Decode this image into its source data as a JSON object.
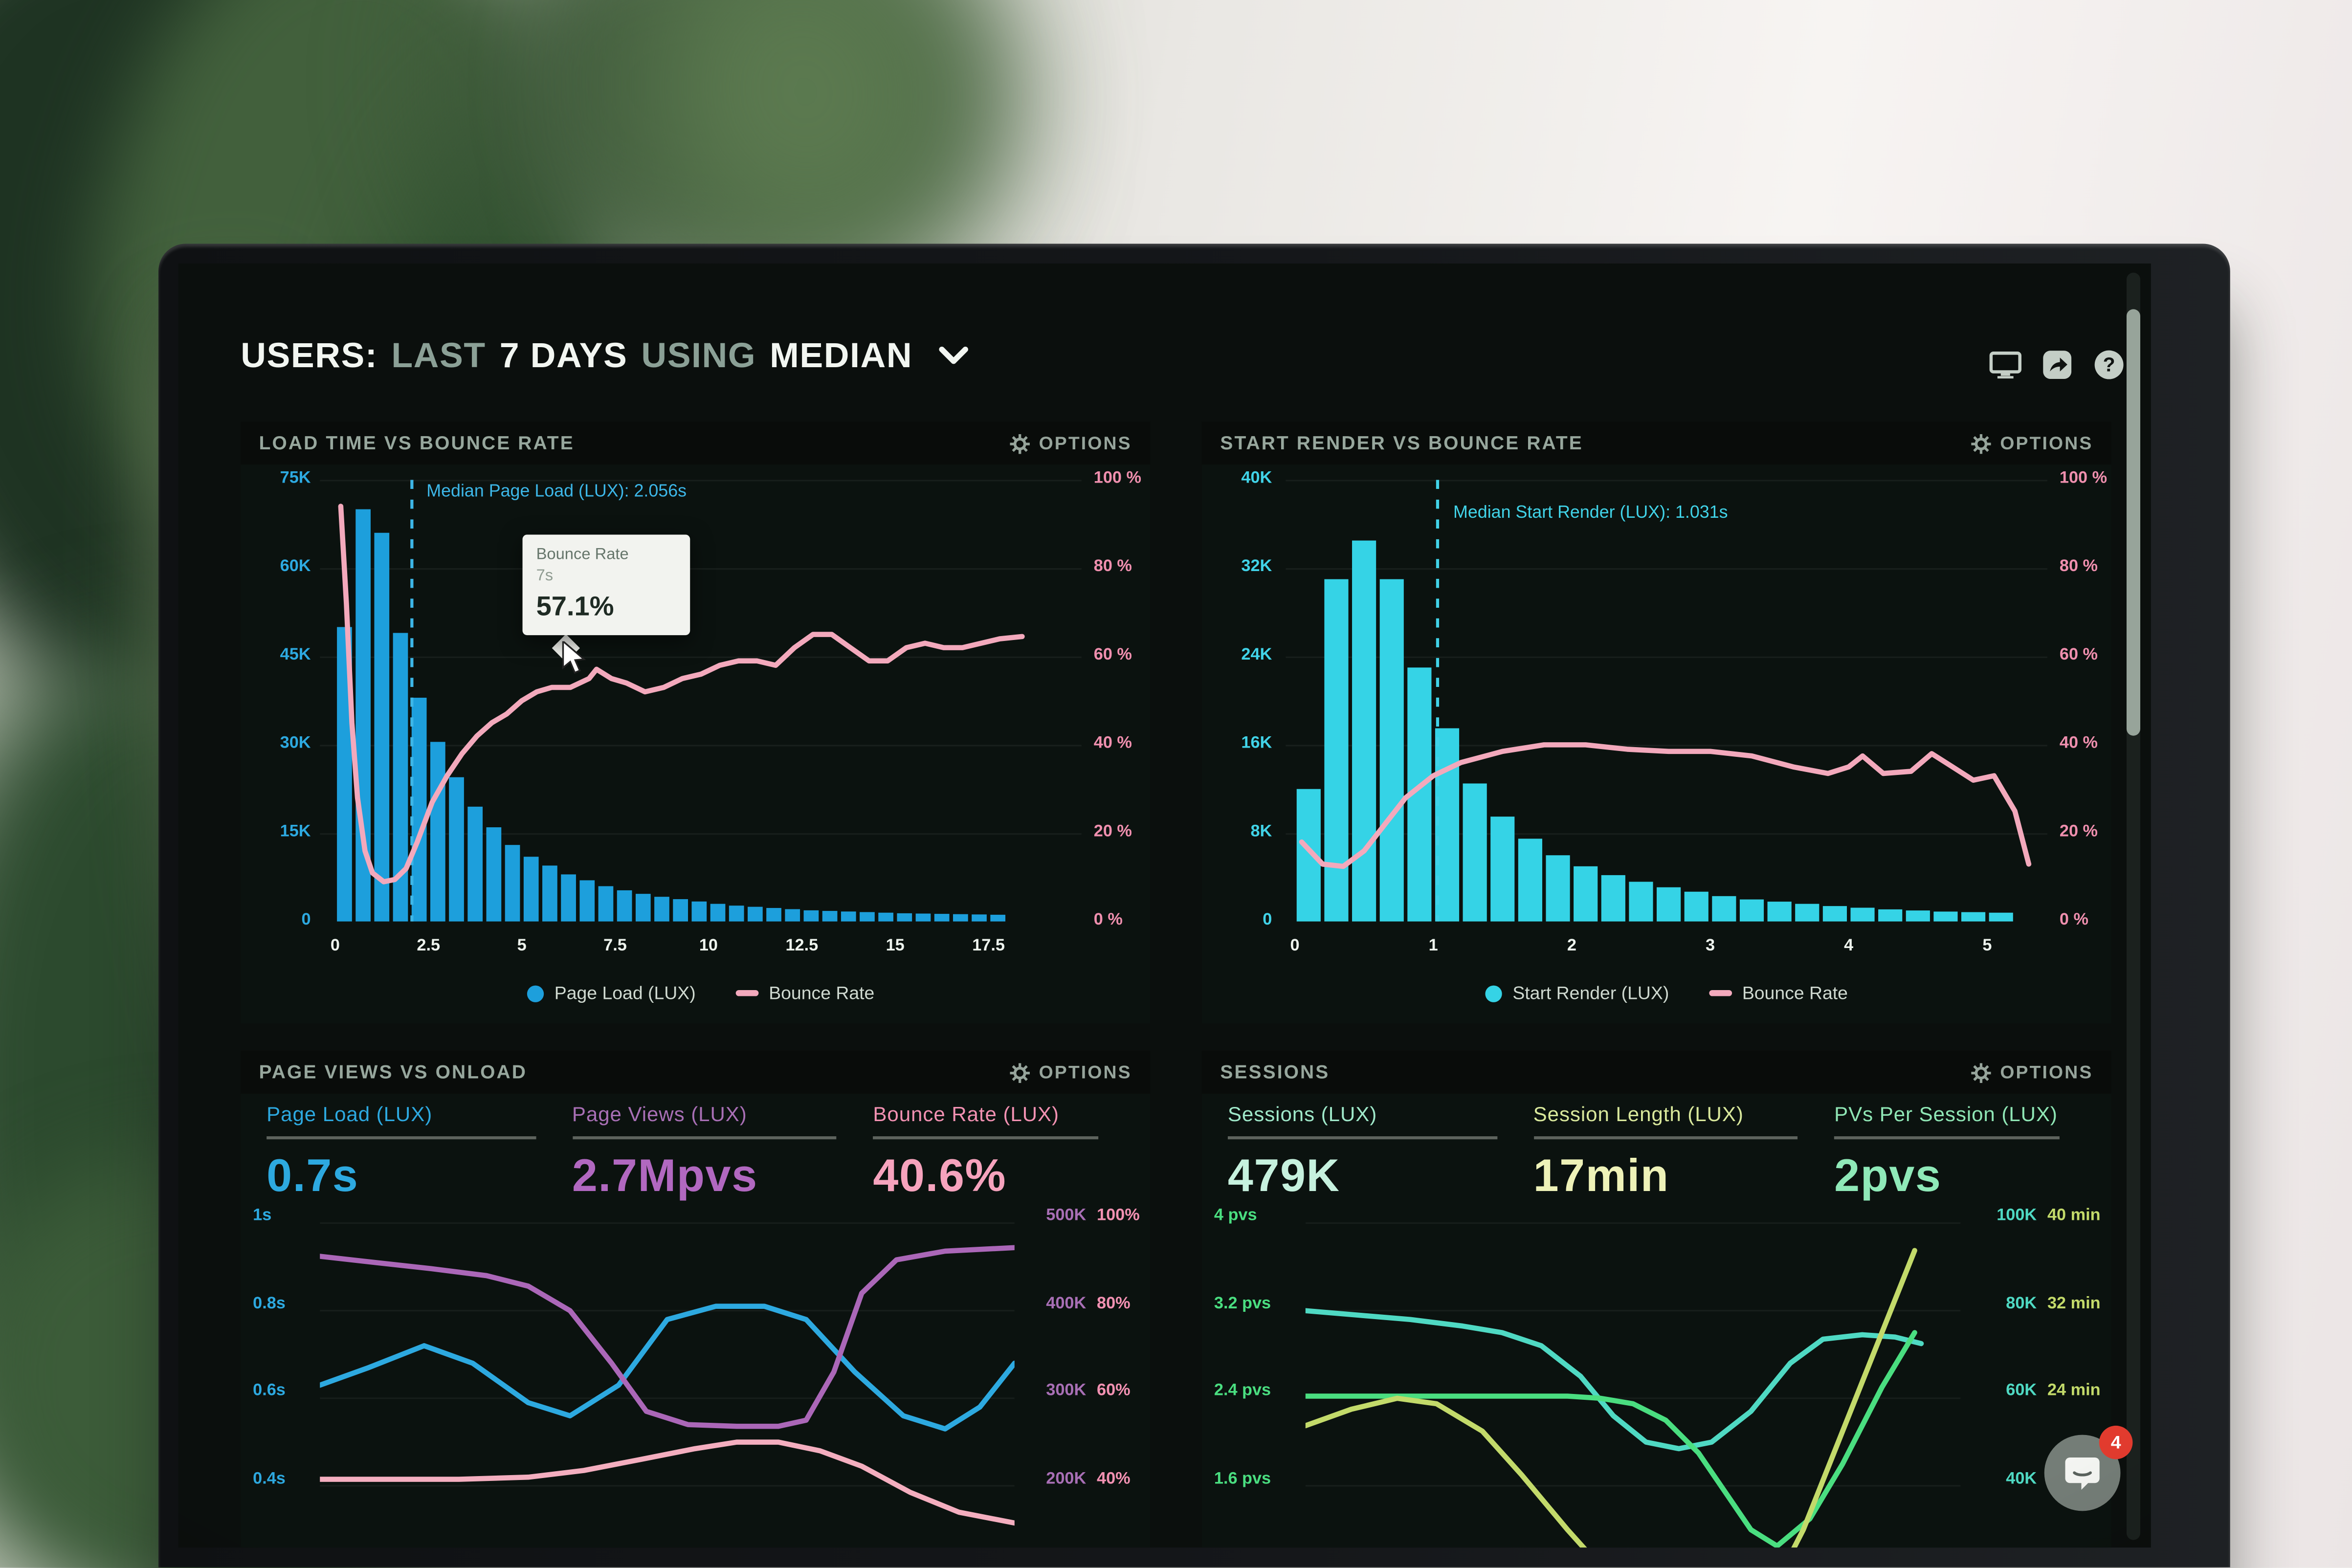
{
  "header": {
    "segments": [
      {
        "text": "USERS:",
        "emphasis": true
      },
      {
        "text": "LAST",
        "emphasis": false
      },
      {
        "text": "7 DAYS",
        "emphasis": true
      },
      {
        "text": "USING",
        "emphasis": false
      },
      {
        "text": "MEDIAN",
        "emphasis": true
      }
    ],
    "icons": [
      "display-icon",
      "share-icon",
      "help-icon"
    ]
  },
  "colors": {
    "screen_background": "#0b0f0d",
    "blue": "#1d9fdc",
    "cyan": "#35d3e6",
    "pink": "#f3a9bc",
    "purple": "#ab67b8",
    "green": "#4ade80",
    "teal": "#4fd9c3",
    "yellow_green": "#c3da6a",
    "badge_red": "#e23b2e"
  },
  "panels": [
    {
      "title": "LOAD TIME VS BOUNCE RATE",
      "options_label": "OPTIONS"
    },
    {
      "title": "START RENDER VS BOUNCE RATE",
      "options_label": "OPTIONS"
    },
    {
      "title": "PAGE VIEWS VS ONLOAD",
      "options_label": "OPTIONS",
      "metrics": [
        {
          "label": "Page Load (LUX)",
          "value": "0.7s",
          "label_color": "#2da9e0",
          "value_color": "#2da9e0"
        },
        {
          "label": "Page Views (LUX)",
          "value": "2.7Mpvs",
          "label_color": "#a86fb5",
          "value_color": "#b168c0"
        },
        {
          "label": "Bounce Rate (LUX)",
          "value": "40.6%",
          "label_color": "#f291b2",
          "value_color": "#f6a3bd"
        }
      ]
    },
    {
      "title": "SESSIONS",
      "options_label": "OPTIONS",
      "metrics": [
        {
          "label": "Sessions (LUX)",
          "value": "479K",
          "label_color": "#9fe8c9",
          "value_color": "#c6f1de"
        },
        {
          "label": "Session Length (LUX)",
          "value": "17min",
          "label_color": "#d9e89c",
          "value_color": "#eef2b8"
        },
        {
          "label": "PVs Per Session (LUX)",
          "value": "2pvs",
          "label_color": "#8fe6b5",
          "value_color": "#8fe9b8"
        }
      ]
    }
  ],
  "tooltip": {
    "series": "Bounce Rate",
    "x": "7s",
    "value": "57.1%"
  },
  "chat": {
    "badge": "4"
  },
  "chart_data": [
    {
      "type": "bar+line",
      "title": "LOAD TIME VS BOUNCE RATE",
      "x_unit": "seconds",
      "x_ticks": [
        "0",
        "2.5",
        "5",
        "7.5",
        "10",
        "12.5",
        "15",
        "17.5"
      ],
      "y_left": {
        "labels": [
          "75K",
          "60K",
          "45K",
          "30K",
          "15K",
          "0"
        ],
        "max": 75,
        "color": "#2da9e0"
      },
      "y_right": {
        "labels": [
          "100 %",
          "80 %",
          "60 %",
          "40 %",
          "20 %",
          "0 %"
        ],
        "max": 100,
        "color": "#ef8fae"
      },
      "bar_series": {
        "name": "Page Load (LUX)",
        "unit": "K",
        "color": "#1d9fdc",
        "start": 0,
        "bin_width": 0.5,
        "values": [
          50,
          70,
          66,
          49,
          38,
          30.5,
          24.5,
          19.5,
          16,
          13,
          11,
          9.5,
          8,
          7,
          6,
          5.3,
          4.7,
          4.2,
          3.8,
          3.4,
          3,
          2.7,
          2.5,
          2.3,
          2.1,
          1.9,
          1.8,
          1.7,
          1.6,
          1.5,
          1.4,
          1.35,
          1.3,
          1.25,
          1.2,
          1.15
        ]
      },
      "line_series": {
        "name": "Bounce Rate",
        "unit": "%",
        "color": "#f3a9bc",
        "points": [
          [
            0.15,
            94
          ],
          [
            0.3,
            72
          ],
          [
            0.45,
            45
          ],
          [
            0.6,
            28
          ],
          [
            0.8,
            16
          ],
          [
            1.0,
            11
          ],
          [
            1.3,
            9
          ],
          [
            1.6,
            9.5
          ],
          [
            1.9,
            12
          ],
          [
            2.2,
            18
          ],
          [
            2.6,
            27
          ],
          [
            3.0,
            33
          ],
          [
            3.4,
            38
          ],
          [
            3.8,
            42
          ],
          [
            4.2,
            45
          ],
          [
            4.6,
            47
          ],
          [
            5.0,
            50
          ],
          [
            5.4,
            52
          ],
          [
            5.8,
            53
          ],
          [
            6.3,
            53
          ],
          [
            6.8,
            55
          ],
          [
            7.0,
            57.1
          ],
          [
            7.4,
            55
          ],
          [
            7.8,
            54
          ],
          [
            8.3,
            52
          ],
          [
            8.8,
            53
          ],
          [
            9.3,
            55
          ],
          [
            9.8,
            56
          ],
          [
            10.3,
            58
          ],
          [
            10.8,
            59
          ],
          [
            11.3,
            59
          ],
          [
            11.8,
            58
          ],
          [
            12.3,
            62
          ],
          [
            12.8,
            65
          ],
          [
            13.3,
            65
          ],
          [
            13.8,
            62
          ],
          [
            14.3,
            59
          ],
          [
            14.8,
            59
          ],
          [
            15.3,
            62
          ],
          [
            15.8,
            63
          ],
          [
            16.3,
            62
          ],
          [
            16.8,
            62
          ],
          [
            17.3,
            63
          ],
          [
            17.8,
            64
          ],
          [
            18.4,
            64.5
          ]
        ]
      },
      "median": {
        "x": 2.056,
        "label": "Median Page Load (LUX): 2.056s",
        "color": "#3db7e8"
      },
      "legend": [
        {
          "label": "Page Load (LUX)",
          "marker": "dot",
          "color": "#1d9fdc"
        },
        {
          "label": "Bounce Rate",
          "marker": "dash",
          "color": "#f3a9bc"
        }
      ]
    },
    {
      "type": "bar+line",
      "title": "START RENDER VS BOUNCE RATE",
      "x_unit": "seconds",
      "x_ticks": [
        "0",
        "1",
        "2",
        "3",
        "4",
        "5"
      ],
      "y_left": {
        "labels": [
          "40K",
          "32K",
          "24K",
          "16K",
          "8K",
          "0"
        ],
        "max": 40,
        "color": "#41d3e8"
      },
      "y_right": {
        "labels": [
          "100 %",
          "80 %",
          "60 %",
          "40 %",
          "20 %",
          "0 %"
        ],
        "max": 100,
        "color": "#ef8fae"
      },
      "bar_series": {
        "name": "Start Render (LUX)",
        "unit": "K",
        "color": "#35d3e6",
        "start": 0,
        "bin_width": 0.2,
        "values": [
          12,
          31,
          34.5,
          31,
          23,
          17.5,
          12.5,
          9.5,
          7.5,
          6,
          5,
          4.2,
          3.6,
          3.1,
          2.7,
          2.3,
          2,
          1.8,
          1.6,
          1.4,
          1.25,
          1.1,
          1,
          0.9,
          0.85,
          0.8
        ]
      },
      "line_series": {
        "name": "Bounce Rate",
        "unit": "%",
        "color": "#f3a9bc",
        "points": [
          [
            0.05,
            18
          ],
          [
            0.2,
            13
          ],
          [
            0.35,
            12.5
          ],
          [
            0.5,
            16
          ],
          [
            0.65,
            22
          ],
          [
            0.8,
            28
          ],
          [
            1.0,
            33
          ],
          [
            1.2,
            36
          ],
          [
            1.5,
            38.5
          ],
          [
            1.8,
            40
          ],
          [
            2.1,
            40
          ],
          [
            2.4,
            39
          ],
          [
            2.7,
            38.5
          ],
          [
            3.0,
            38.5
          ],
          [
            3.3,
            37.5
          ],
          [
            3.6,
            35
          ],
          [
            3.85,
            33.5
          ],
          [
            4.0,
            35
          ],
          [
            4.1,
            37.5
          ],
          [
            4.25,
            33.5
          ],
          [
            4.45,
            34
          ],
          [
            4.6,
            38
          ],
          [
            4.75,
            35
          ],
          [
            4.9,
            32
          ],
          [
            5.05,
            33
          ],
          [
            5.2,
            25
          ],
          [
            5.3,
            13
          ]
        ]
      },
      "median": {
        "x": 1.031,
        "label": "Median Start Render (LUX): 1.031s",
        "color": "#41d3e8"
      },
      "legend": [
        {
          "label": "Start Render (LUX)",
          "marker": "dot",
          "color": "#35d3e6"
        },
        {
          "label": "Bounce Rate",
          "marker": "dash",
          "color": "#f3a9bc"
        }
      ]
    },
    {
      "type": "line",
      "title": "PAGE VIEWS VS ONLOAD",
      "y_left": {
        "labels": [
          "1s",
          "0.8s",
          "0.6s",
          "0.4s"
        ],
        "color": "#2da9e0"
      },
      "y_right": {
        "rows": [
          [
            "500K",
            "100%"
          ],
          [
            "400K",
            "80%"
          ],
          [
            "300K",
            "60%"
          ],
          [
            "200K",
            "40%"
          ]
        ],
        "colors": [
          "#a86fb5",
          "#f291b2"
        ]
      },
      "series": [
        {
          "name": "Page Load (LUX)",
          "axis": "seconds",
          "color": "#2da9e0",
          "x": [
            0,
            0.07,
            0.15,
            0.22,
            0.3,
            0.36,
            0.43,
            0.5,
            0.57,
            0.64,
            0.7,
            0.77,
            0.84,
            0.9,
            0.95,
            1
          ],
          "y": [
            0.63,
            0.67,
            0.72,
            0.68,
            0.59,
            0.56,
            0.63,
            0.78,
            0.81,
            0.81,
            0.78,
            0.66,
            0.56,
            0.53,
            0.58,
            0.68
          ]
        },
        {
          "name": "Page Views (LUX)",
          "axis": "pageviews_k",
          "color": "#ab67b8",
          "x": [
            0,
            0.08,
            0.16,
            0.24,
            0.3,
            0.36,
            0.42,
            0.47,
            0.53,
            0.6,
            0.66,
            0.7,
            0.74,
            0.78,
            0.83,
            0.9,
            1
          ],
          "y": [
            462,
            455,
            448,
            440,
            428,
            400,
            340,
            285,
            270,
            268,
            268,
            275,
            330,
            420,
            458,
            468,
            472
          ]
        },
        {
          "name": "Bounce Rate (LUX)",
          "axis": "percent",
          "color": "#f4aebf",
          "x": [
            0,
            0.1,
            0.2,
            0.3,
            0.38,
            0.46,
            0.54,
            0.6,
            0.66,
            0.72,
            0.78,
            0.85,
            0.92,
            1
          ],
          "y": [
            41.5,
            41.5,
            41.5,
            42,
            43.5,
            46,
            48.5,
            50,
            50,
            48,
            44.5,
            38.5,
            34,
            31.5
          ]
        }
      ]
    },
    {
      "type": "line",
      "title": "SESSIONS",
      "y_left": {
        "labels": [
          "4 pvs",
          "3.2 pvs",
          "2.4 pvs",
          "1.6 pvs"
        ],
        "color": "#4ade80"
      },
      "y_right": {
        "rows": [
          [
            "100K",
            "40 min"
          ],
          [
            "80K",
            "32 min"
          ],
          [
            "60K",
            "24 min"
          ],
          [
            "40K",
            ""
          ]
        ],
        "colors": [
          "#4fd9c3",
          "#c3da6a"
        ]
      },
      "series": [
        {
          "name": "Sessions (LUX)",
          "axis": "sessions_k",
          "color": "#4fd9c3",
          "x": [
            0,
            0.08,
            0.16,
            0.24,
            0.3,
            0.36,
            0.42,
            0.47,
            0.52,
            0.57,
            0.62,
            0.68,
            0.74,
            0.79,
            0.85,
            0.9,
            0.94
          ],
          "y": [
            80,
            79,
            78,
            76.5,
            75,
            72,
            65,
            56,
            50,
            48.5,
            50,
            57,
            68,
            73.5,
            74.5,
            74,
            72.5
          ]
        },
        {
          "name": "PVs Per Session (LUX)",
          "axis": "pvs",
          "color": "#4ade80",
          "x": [
            0,
            0.1,
            0.2,
            0.3,
            0.4,
            0.45,
            0.5,
            0.55,
            0.6,
            0.64,
            0.68,
            0.72,
            0.77,
            0.82,
            0.88,
            0.93
          ],
          "y": [
            2.42,
            2.42,
            2.42,
            2.42,
            2.42,
            2.4,
            2.35,
            2.2,
            1.9,
            1.55,
            1.2,
            1.05,
            1.3,
            1.8,
            2.5,
            3.0
          ]
        },
        {
          "name": "Session Length (LUX)",
          "axis": "minutes",
          "color": "#c3da6a",
          "x": [
            0,
            0.07,
            0.14,
            0.2,
            0.27,
            0.33,
            0.4,
            0.46,
            0.52,
            0.58,
            0.64,
            0.7,
            0.76,
            0.82,
            0.88,
            0.93
          ],
          "y": [
            21.5,
            23,
            24,
            23.5,
            21,
            17,
            12,
            8,
            5,
            3.5,
            3,
            5,
            12,
            21,
            30,
            37.5
          ]
        }
      ]
    }
  ]
}
